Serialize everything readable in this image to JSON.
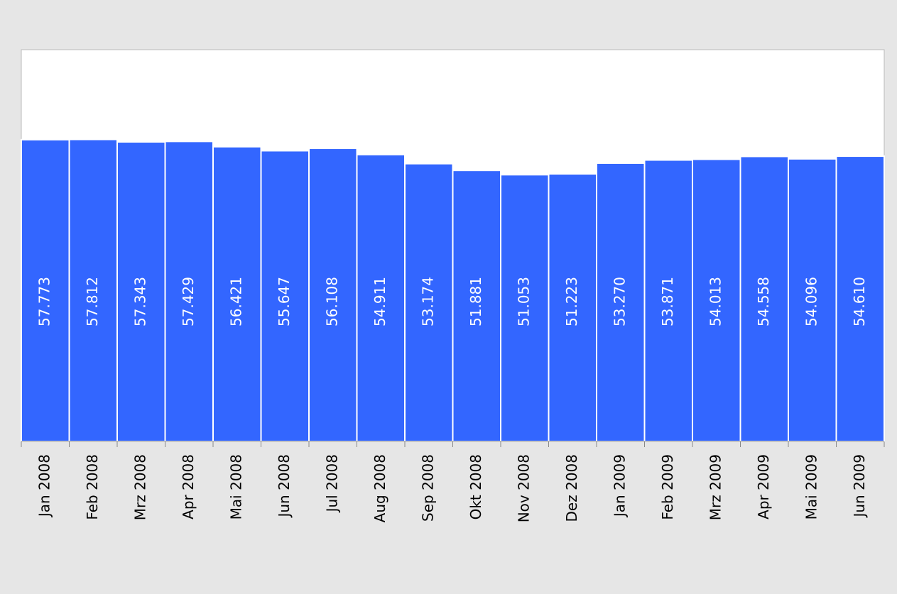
{
  "chart_data": {
    "type": "bar",
    "categories": [
      "Jan 2008",
      "Feb 2008",
      "Mrz 2008",
      "Apr 2008",
      "Mai 2008",
      "Jun 2008",
      "Jul 2008",
      "Aug 2008",
      "Sep 2008",
      "Okt 2008",
      "Nov 2008",
      "Dez 2008",
      "Jan 2009",
      "Feb 2009",
      "Mrz 2009",
      "Apr 2009",
      "Mai 2009",
      "Jun 2009"
    ],
    "values": [
      57.773,
      57.812,
      57.343,
      57.429,
      56.421,
      55.647,
      56.108,
      54.911,
      53.174,
      51.881,
      51.053,
      51.223,
      53.27,
      53.871,
      54.013,
      54.558,
      54.096,
      54.61
    ],
    "value_labels": [
      "57.773",
      "57.812",
      "57.343",
      "57.429",
      "56.421",
      "55.647",
      "56.108",
      "54.911",
      "53.174",
      "51.881",
      "51.053",
      "51.223",
      "53.270",
      "53.871",
      "54.013",
      "54.558",
      "54.096",
      "54.610"
    ],
    "color": "#3366ff",
    "ylim": [
      0,
      75
    ]
  }
}
